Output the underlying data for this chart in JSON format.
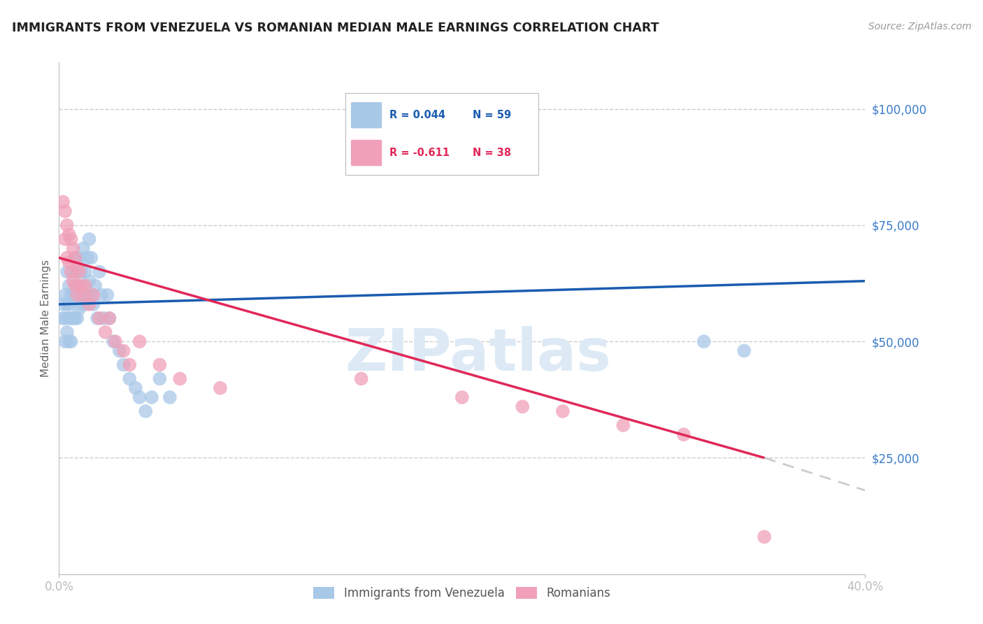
{
  "title": "IMMIGRANTS FROM VENEZUELA VS ROMANIAN MEDIAN MALE EARNINGS CORRELATION CHART",
  "source": "Source: ZipAtlas.com",
  "ylabel": "Median Male Earnings",
  "ytick_labels": [
    "",
    "$25,000",
    "$50,000",
    "$75,000",
    "$100,000"
  ],
  "xlim": [
    0.0,
    0.4
  ],
  "ylim": [
    0,
    110000
  ],
  "legend_blue_R": "0.044",
  "legend_blue_N": "59",
  "legend_pink_R": "-0.611",
  "legend_pink_N": "38",
  "blue_color": "#a8c8e8",
  "pink_color": "#f0a0b8",
  "line_blue": "#1a5cb0",
  "line_pink": "#e02858",
  "line_pink_dash": "#cccccc",
  "watermark": "ZIPatlas",
  "background_color": "#ffffff",
  "grid_color": "#cccccc",
  "axis_color": "#bbbbbb",
  "title_color": "#222222",
  "label_color": "#3a7bc8",
  "venezuela_x": [
    0.002,
    0.002,
    0.003,
    0.003,
    0.003,
    0.004,
    0.004,
    0.004,
    0.005,
    0.005,
    0.005,
    0.005,
    0.006,
    0.006,
    0.006,
    0.007,
    0.007,
    0.007,
    0.008,
    0.008,
    0.008,
    0.009,
    0.009,
    0.009,
    0.01,
    0.01,
    0.01,
    0.011,
    0.011,
    0.012,
    0.012,
    0.013,
    0.013,
    0.014,
    0.014,
    0.015,
    0.015,
    0.016,
    0.016,
    0.017,
    0.018,
    0.019,
    0.02,
    0.021,
    0.022,
    0.024,
    0.025,
    0.027,
    0.03,
    0.032,
    0.035,
    0.038,
    0.04,
    0.043,
    0.046,
    0.05,
    0.055,
    0.32,
    0.34
  ],
  "venezuela_y": [
    58000,
    55000,
    60000,
    55000,
    50000,
    65000,
    58000,
    52000,
    62000,
    58000,
    55000,
    50000,
    60000,
    55000,
    50000,
    65000,
    60000,
    55000,
    68000,
    62000,
    55000,
    65000,
    60000,
    55000,
    68000,
    62000,
    57000,
    65000,
    58000,
    70000,
    60000,
    65000,
    58000,
    68000,
    60000,
    72000,
    63000,
    68000,
    60000,
    58000,
    62000,
    55000,
    65000,
    60000,
    55000,
    60000,
    55000,
    50000,
    48000,
    45000,
    42000,
    40000,
    38000,
    35000,
    38000,
    42000,
    38000,
    50000,
    48000
  ],
  "romanian_x": [
    0.002,
    0.003,
    0.003,
    0.004,
    0.004,
    0.005,
    0.005,
    0.006,
    0.006,
    0.007,
    0.007,
    0.008,
    0.008,
    0.009,
    0.009,
    0.01,
    0.011,
    0.012,
    0.013,
    0.015,
    0.017,
    0.02,
    0.023,
    0.025,
    0.028,
    0.032,
    0.035,
    0.04,
    0.05,
    0.06,
    0.08,
    0.15,
    0.2,
    0.23,
    0.25,
    0.28,
    0.31,
    0.35
  ],
  "romanian_y": [
    80000,
    78000,
    72000,
    75000,
    68000,
    73000,
    67000,
    72000,
    65000,
    70000,
    63000,
    68000,
    62000,
    66000,
    60000,
    65000,
    62000,
    60000,
    62000,
    58000,
    60000,
    55000,
    52000,
    55000,
    50000,
    48000,
    45000,
    50000,
    45000,
    42000,
    40000,
    42000,
    38000,
    36000,
    35000,
    32000,
    30000,
    8000
  ],
  "blue_line_x0": 0.0,
  "blue_line_y0": 58000,
  "blue_line_x1": 0.4,
  "blue_line_y1": 63000,
  "pink_line_x0": 0.0,
  "pink_line_y0": 68000,
  "pink_line_solid_x1": 0.35,
  "pink_line_solid_y1": 25000,
  "pink_line_dash_x1": 0.4,
  "pink_line_dash_y1": 18000
}
